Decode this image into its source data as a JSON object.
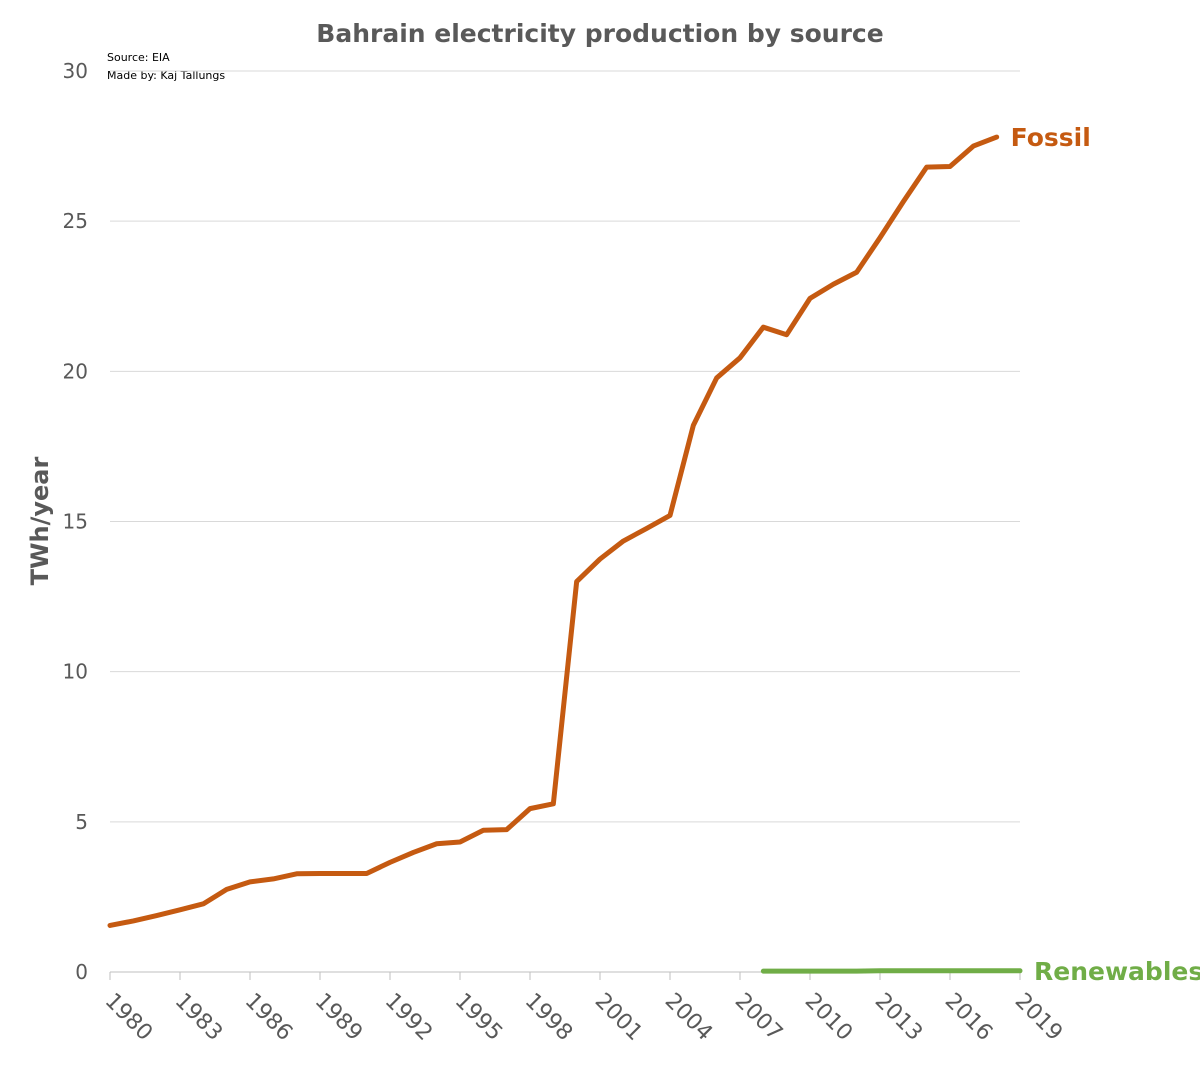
{
  "chart_data": {
    "type": "line",
    "title": "Bahrain electricity production by source",
    "notes": [
      "Source: EIA",
      "Made by: Kaj Tallungs"
    ],
    "ylabel": "TWh/year",
    "xlim": [
      1980,
      2019
    ],
    "xticks": [
      1980,
      1983,
      1986,
      1989,
      1992,
      1995,
      1998,
      2001,
      2004,
      2007,
      2010,
      2013,
      2016,
      2019
    ],
    "ylim": [
      0,
      30
    ],
    "yticks": [
      0,
      5,
      10,
      15,
      20,
      25,
      30
    ],
    "grid": true,
    "series": [
      {
        "name": "Fossil",
        "color": "#c55a11",
        "x": [
          1980,
          1981,
          1982,
          1983,
          1984,
          1985,
          1986,
          1987,
          1988,
          1989,
          1990,
          1991,
          1992,
          1993,
          1994,
          1995,
          1996,
          1997,
          1998,
          1999,
          2000,
          2001,
          2002,
          2003,
          2004,
          2005,
          2006,
          2007,
          2008,
          2009,
          2010,
          2011,
          2012,
          2013,
          2014,
          2015,
          2016,
          2017,
          2018
        ],
        "values": [
          1.55,
          1.7,
          1.88,
          2.07,
          2.27,
          2.75,
          3.0,
          3.1,
          3.27,
          3.28,
          3.28,
          3.28,
          3.65,
          3.98,
          4.27,
          4.33,
          4.72,
          4.74,
          5.44,
          5.6,
          13.0,
          13.75,
          14.35,
          14.77,
          15.2,
          18.2,
          19.78,
          20.45,
          21.47,
          21.22,
          22.43,
          22.9,
          23.3,
          24.45,
          25.65,
          26.8,
          26.82,
          27.5,
          27.8
        ]
      },
      {
        "name": "Renewables",
        "color": "#70ad47",
        "x": [
          2008,
          2009,
          2010,
          2011,
          2012,
          2013,
          2014,
          2015,
          2016,
          2017,
          2018,
          2019
        ],
        "values": [
          0.03,
          0.03,
          0.03,
          0.03,
          0.03,
          0.04,
          0.04,
          0.04,
          0.04,
          0.04,
          0.04,
          0.04
        ]
      }
    ]
  }
}
